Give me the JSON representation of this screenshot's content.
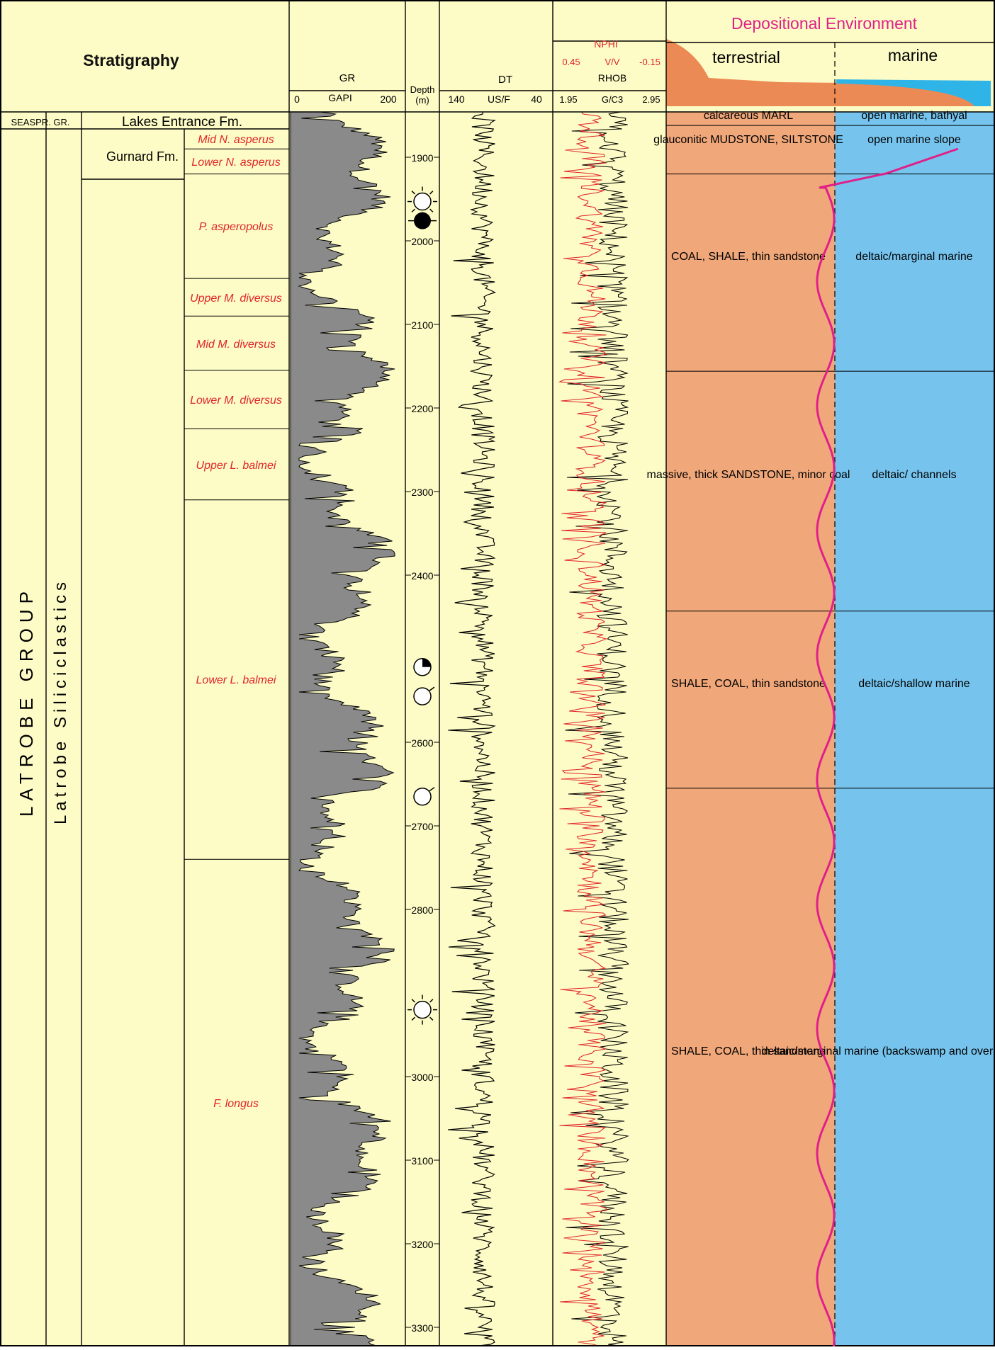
{
  "header": {
    "stratigraphy_title": "Stratigraphy",
    "depositional_title": "Depositional Environment",
    "env_left": "terrestrial",
    "env_right": "marine"
  },
  "logs": {
    "gr": {
      "name": "GR",
      "unit": "GAPI",
      "min": "0",
      "max": "200"
    },
    "depth": {
      "name": "Depth",
      "unit": "(m)"
    },
    "dt": {
      "name": "DT",
      "unit": "US/F",
      "min": "140",
      "max": "40"
    },
    "nphi": {
      "name": "NPHI",
      "unit": "V/V",
      "min": "0.45",
      "max": "-0.15"
    },
    "rhob": {
      "name": "RHOB",
      "unit": "G/C3",
      "min": "1.95",
      "max": "2.95"
    }
  },
  "stratigraphy": {
    "seaspray": "SEASPR. GR.",
    "lakes_entrance": "Lakes Entrance Fm.",
    "gurnard": "Gurnard Fm.",
    "latrobe_group": "LATROBE GROUP",
    "latrobe_siliciclastics": "Latrobe Siliciclastics"
  },
  "zones": [
    {
      "id": "mid-n-asperus",
      "label": "Mid N. asperus",
      "top": 1850,
      "base": 1890
    },
    {
      "id": "lower-n-asperus",
      "label": "Lower N. asperus",
      "top": 1890,
      "base": 1920
    },
    {
      "id": "p-asperopolus",
      "label": "P. asperopolus",
      "top": 1920,
      "base": 2045
    },
    {
      "id": "upper-m-diversus",
      "label": "Upper M. diversus",
      "top": 2045,
      "base": 2090
    },
    {
      "id": "mid-m-diversus",
      "label": "Mid M. diversus",
      "top": 2090,
      "base": 2155
    },
    {
      "id": "lower-m-diversus",
      "label": "Lower M. diversus",
      "top": 2155,
      "base": 2225
    },
    {
      "id": "upper-l-balmei",
      "label": "Upper L. balmei",
      "top": 2225,
      "base": 2310
    },
    {
      "id": "lower-l-balmei",
      "label": "Lower L. balmei",
      "top": 2310,
      "base": 2740
    },
    {
      "id": "f-longus",
      "label": "F. longus",
      "top": 2740,
      "base": 3400
    }
  ],
  "lithology": [
    {
      "id": "marl",
      "label": "calcareous MARL",
      "env": "open marine, bathyal",
      "top": 1845,
      "base": 1862
    },
    {
      "id": "glauconitic",
      "label": "glauconitic MUDSTONE, SILTSTONE",
      "env": "open marine slope",
      "top": 1862,
      "base": 1920
    },
    {
      "id": "coal-shale-1",
      "label": "COAL, SHALE, thin sandstone",
      "env": "deltaic/marginal marine",
      "top": 1920,
      "base": 2156
    },
    {
      "id": "sandstone",
      "label": "massive, thick SANDSTONE, minor coal",
      "env": "deltaic/ channels",
      "top": 2156,
      "base": 2443
    },
    {
      "id": "shale-coal-1",
      "label": "SHALE, COAL, thin sandstone",
      "env": "deltaic/shallow marine",
      "top": 2443,
      "base": 2655
    },
    {
      "id": "shale-coal-2",
      "label": "SHALE, COAL, thin sandstone",
      "env": "deltaic/marginal marine (backswamp and overbank deposits)",
      "top": 2655,
      "base": 3400
    }
  ],
  "depth_ticks": [
    "1900",
    "2000",
    "2100",
    "2200",
    "2300",
    "2400",
    "2600",
    "2700",
    "2800",
    "3000",
    "3100",
    "3200",
    "3300"
  ],
  "symbols": [
    {
      "name": "sun-open-icon",
      "depth": 1953
    },
    {
      "name": "filled-circle-icon",
      "depth": 1976
    },
    {
      "name": "quarter-filled-icon",
      "depth": 2510
    },
    {
      "name": "circle-tick-icon",
      "depth": 2545
    },
    {
      "name": "circle-tick-icon",
      "depth": 2665
    },
    {
      "name": "sun-open-icon",
      "depth": 2920
    }
  ],
  "colors": {
    "panel": "#fdfcc6",
    "terrestrial": "#f0a77a",
    "marine": "#76c4ee",
    "curve": "#e0208a",
    "red_label": "#e0242a",
    "gr_fill": "#8a8a8a",
    "header_terrestrial": "#ec8a55",
    "header_marine": "#2fb4e8"
  }
}
